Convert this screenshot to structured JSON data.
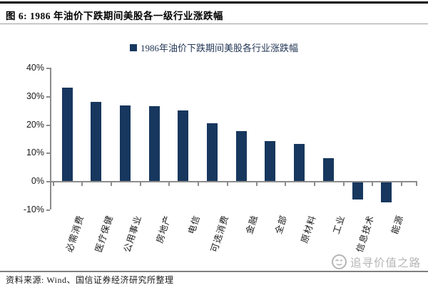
{
  "figure": {
    "title": "图 6: 1986 年油价下跌期间美股各一级行业涨跌幅",
    "source_note": "资料来源: Wind、国信证券经济研究所整理",
    "watermark_text": "追寻价值之路"
  },
  "chart_data": {
    "type": "bar",
    "legend": "1986年油价下跌期间美股各行业涨跌幅",
    "legend_position": "top-center",
    "categories": [
      "必需消费",
      "医疗保健",
      "公用事业",
      "房地产",
      "电信",
      "可选消费",
      "金融",
      "全部",
      "原材料",
      "工业",
      "信息技术",
      "能源"
    ],
    "values": [
      33.0,
      28.0,
      26.6,
      26.3,
      25.0,
      20.3,
      17.7,
      14.2,
      13.0,
      8.0,
      -6.1,
      -7.1
    ],
    "unit": "%",
    "ylim": [
      -10,
      40
    ],
    "yticks": [
      40,
      30,
      20,
      10,
      0,
      -10
    ],
    "ytick_labels": [
      "40%",
      "30%",
      "20%",
      "10%",
      "0%",
      "-10%"
    ],
    "grid": false,
    "bar_color": "#17375e",
    "axis_color": "#8c8c8c"
  }
}
